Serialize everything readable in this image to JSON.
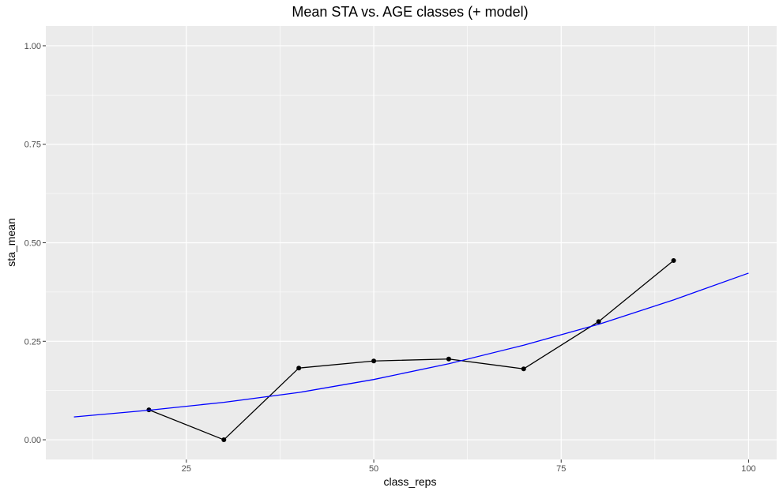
{
  "chart_data": {
    "type": "line",
    "title": "Mean STA vs. AGE classes (+ model)",
    "xlabel": "class_reps",
    "ylabel": "sta_mean",
    "xlim": [
      6.25,
      103.75
    ],
    "ylim": [
      -0.05,
      1.05
    ],
    "x_ticks": [
      25,
      50,
      75,
      100
    ],
    "x_tick_labels": [
      "25",
      "50",
      "75",
      "100"
    ],
    "y_ticks": [
      0,
      0.25,
      0.5,
      0.75,
      1.0
    ],
    "y_tick_labels": [
      "0.00",
      "0.25",
      "0.50",
      "0.75",
      "1.00"
    ],
    "grid": true,
    "legend": "none",
    "series": [
      {
        "color": "#000000",
        "style": "line+points",
        "x": [
          20,
          30,
          40,
          50,
          60,
          70,
          80,
          90
        ],
        "y": [
          0.076,
          0.0,
          0.182,
          0.2,
          0.205,
          0.18,
          0.3,
          0.455
        ]
      },
      {
        "color": "#0000ff",
        "style": "line",
        "x": [
          10,
          20,
          30,
          40,
          50,
          60,
          70,
          80,
          90,
          100
        ],
        "y": [
          0.058,
          0.075,
          0.095,
          0.12,
          0.153,
          0.193,
          0.24,
          0.293,
          0.355,
          0.423
        ]
      }
    ]
  }
}
